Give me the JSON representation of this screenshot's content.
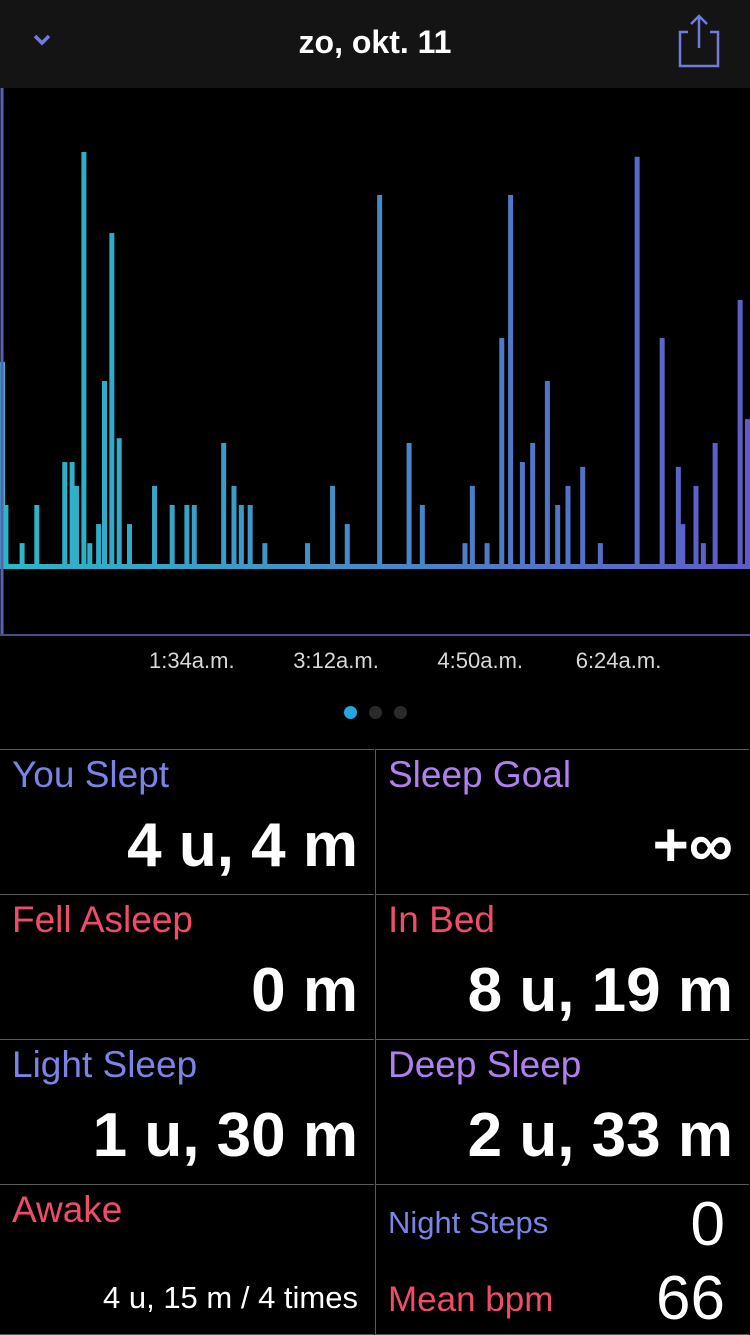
{
  "header": {
    "title": "zo, okt. 11",
    "back_icon": "chevron-down-icon",
    "share_icon": "share-icon",
    "accent": "#6f7be0"
  },
  "chart_data": {
    "type": "area",
    "x_range": [
      "23:25",
      "07:52"
    ],
    "y_range": [
      0,
      100
    ],
    "tick_labels": [
      "1:34a.m.",
      "3:12a.m.",
      "4:50a.m.",
      "6:24a.m."
    ],
    "tick_times": [
      "01:34",
      "03:12",
      "04:50",
      "06:24"
    ],
    "gradient": [
      "#2ab8c8",
      "#5f5cc8"
    ],
    "spikes": [
      [
        "23:25",
        43
      ],
      [
        "23:28",
        13
      ],
      [
        "23:39",
        5
      ],
      [
        "23:49",
        13
      ],
      [
        "00:08",
        22
      ],
      [
        "00:13",
        22
      ],
      [
        "00:16",
        17
      ],
      [
        "00:21",
        87
      ],
      [
        "00:25",
        5
      ],
      [
        "00:31",
        9
      ],
      [
        "00:35",
        39
      ],
      [
        "00:40",
        70
      ],
      [
        "00:45",
        27
      ],
      [
        "00:52",
        9
      ],
      [
        "01:09",
        17
      ],
      [
        "01:21",
        13
      ],
      [
        "01:31",
        13
      ],
      [
        "01:36",
        13
      ],
      [
        "01:56",
        26
      ],
      [
        "02:03",
        17
      ],
      [
        "02:08",
        13
      ],
      [
        "02:14",
        13
      ],
      [
        "02:24",
        5
      ],
      [
        "02:53",
        5
      ],
      [
        "03:10",
        17
      ],
      [
        "03:20",
        9
      ],
      [
        "03:42",
        78
      ],
      [
        "04:02",
        26
      ],
      [
        "04:11",
        13
      ],
      [
        "04:40",
        5
      ],
      [
        "04:45",
        17
      ],
      [
        "04:55",
        5
      ],
      [
        "05:05",
        48
      ],
      [
        "05:11",
        78
      ],
      [
        "05:19",
        22
      ],
      [
        "05:26",
        26
      ],
      [
        "05:36",
        39
      ],
      [
        "05:43",
        13
      ],
      [
        "05:50",
        17
      ],
      [
        "06:00",
        21
      ],
      [
        "06:12",
        5
      ],
      [
        "06:37",
        86
      ],
      [
        "06:54",
        48
      ],
      [
        "07:05",
        21
      ],
      [
        "07:08",
        9
      ],
      [
        "07:17",
        17
      ],
      [
        "07:22",
        5
      ],
      [
        "07:30",
        26
      ],
      [
        "07:47",
        56
      ],
      [
        "07:52",
        31
      ]
    ]
  },
  "pager": {
    "count": 3,
    "active": 0
  },
  "stats": {
    "you_slept": {
      "label": "You Slept",
      "value": "4 u, 4 m"
    },
    "sleep_goal": {
      "label": "Sleep Goal",
      "value": "+∞"
    },
    "fell_asleep": {
      "label": "Fell Asleep",
      "value": "0 m"
    },
    "in_bed": {
      "label": "In Bed",
      "value": "8 u, 19 m"
    },
    "light_sleep": {
      "label": "Light Sleep",
      "value": "1 u, 30 m"
    },
    "deep_sleep": {
      "label": "Deep Sleep",
      "value": "2 u, 33 m"
    },
    "awake": {
      "label": "Awake",
      "value": "4 u, 15 m / 4 times"
    },
    "night_steps": {
      "label": "Night Steps",
      "value": "0"
    },
    "mean_bpm": {
      "label": "Mean bpm",
      "value": "66"
    }
  }
}
